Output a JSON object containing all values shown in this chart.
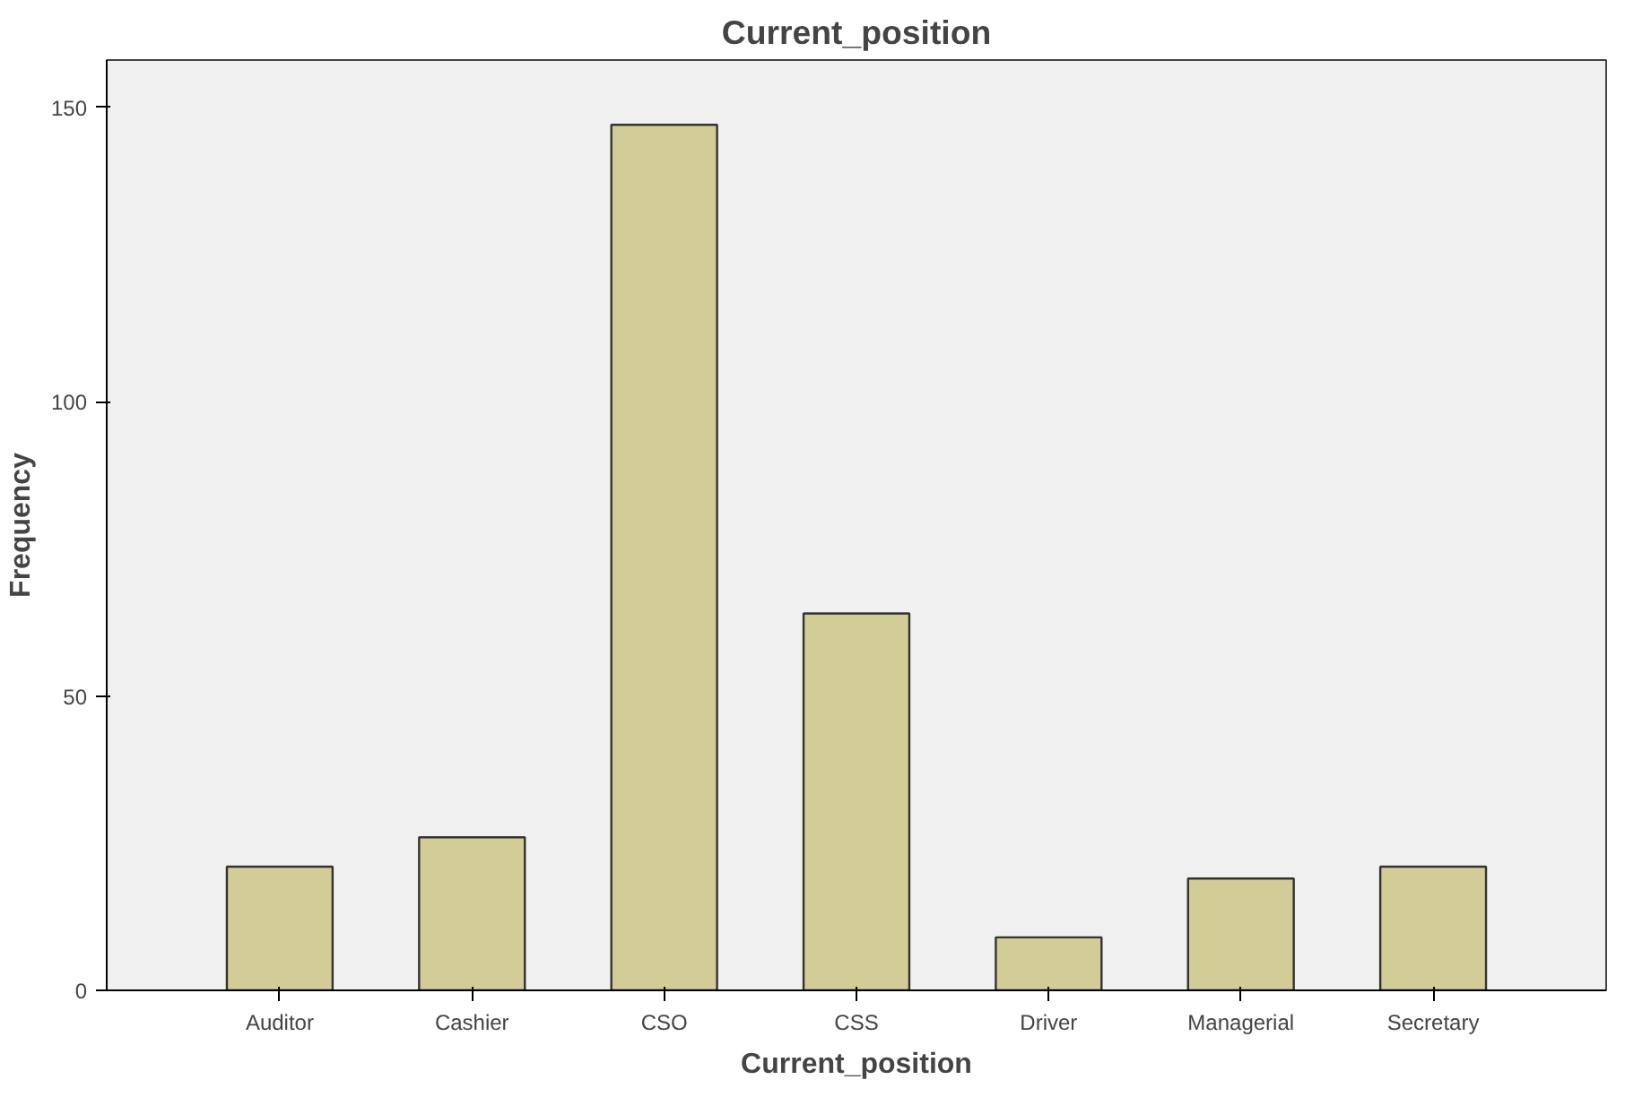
{
  "chart_data": {
    "type": "bar",
    "title": "Current_position",
    "xlabel": "Current_position",
    "ylabel": "Frequency",
    "categories": [
      "Auditor",
      "Cashier",
      "CSO",
      "CSS",
      "Driver",
      "Managerial",
      "Secretary"
    ],
    "values": [
      21,
      26,
      147,
      64,
      9,
      19,
      21
    ],
    "color": "#d2cc96",
    "ylim": [
      0,
      158
    ],
    "yticks": [
      0,
      50,
      100,
      150
    ],
    "grid": false
  }
}
